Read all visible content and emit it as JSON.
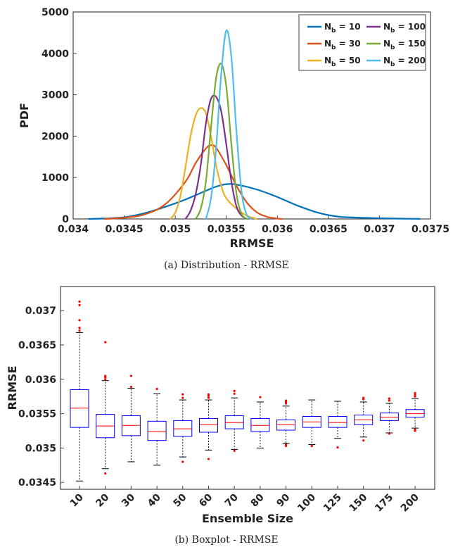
{
  "figure_a": {
    "caption": "(a) Distribution - RRMSE"
  },
  "figure_b": {
    "caption": "(b) Boxplot - RRMSE"
  },
  "chart_data": [
    {
      "type": "line",
      "xlabel": "RRMSE",
      "ylabel": "PDF",
      "xlim": [
        0.034,
        0.0375
      ],
      "ylim": [
        0,
        5000
      ],
      "xticks": [
        "0.034",
        "0.0345",
        "0.035",
        "0.0355",
        "0.036",
        "0.0365",
        "0.037",
        "0.0375"
      ],
      "yticks": [
        "0",
        "1000",
        "2000",
        "3000",
        "4000",
        "5000"
      ],
      "legend_position": "top-right",
      "series": [
        {
          "name_main": "N",
          "name_sub": "b",
          "name_rest": " = 10",
          "color": "#0072BD",
          "x": [
            0.03415,
            0.0343,
            0.0345,
            0.0347,
            0.0349,
            0.0351,
            0.0353,
            0.0354,
            0.0355,
            0.0356,
            0.0358,
            0.036,
            0.0362,
            0.0364,
            0.0366,
            0.0368,
            0.037,
            0.0372,
            0.0374
          ],
          "y": [
            0,
            10,
            40,
            140,
            290,
            470,
            680,
            780,
            840,
            830,
            710,
            530,
            320,
            150,
            55,
            30,
            18,
            8,
            2
          ]
        },
        {
          "name_main": "N",
          "name_sub": "b",
          "name_rest": " = 30",
          "color": "#D95319",
          "x": [
            0.0343,
            0.0345,
            0.0347,
            0.0349,
            0.0351,
            0.0352,
            0.0353,
            0.03535,
            0.0354,
            0.0355,
            0.0356,
            0.0357,
            0.0358,
            0.0359,
            0.036,
            0.03605
          ],
          "y": [
            0,
            30,
            110,
            350,
            900,
            1350,
            1700,
            1780,
            1720,
            1300,
            800,
            400,
            160,
            50,
            10,
            0
          ]
        },
        {
          "name_main": "N",
          "name_sub": "b",
          "name_rest": " = 50",
          "color": "#EDB120",
          "x": [
            0.03495,
            0.035,
            0.03505,
            0.0351,
            0.03515,
            0.0352,
            0.03525,
            0.0353,
            0.03535,
            0.0354,
            0.03545,
            0.0355,
            0.0356,
            0.0357,
            0.0358
          ],
          "y": [
            0,
            150,
            550,
            1250,
            2000,
            2500,
            2680,
            2550,
            2000,
            1300,
            800,
            500,
            250,
            80,
            0
          ]
        },
        {
          "name_main": "N",
          "name_sub": "b",
          "name_rest": " = 100",
          "color": "#7E2F8E",
          "x": [
            0.0351,
            0.03515,
            0.0352,
            0.03525,
            0.0353,
            0.03535,
            0.0354,
            0.03545,
            0.0355,
            0.03555,
            0.0356,
            0.03565,
            0.0357
          ],
          "y": [
            0,
            200,
            600,
            1300,
            2300,
            2900,
            2950,
            2600,
            1800,
            900,
            300,
            80,
            0
          ]
        },
        {
          "name_main": "N",
          "name_sub": "b",
          "name_rest": " = 150",
          "color": "#77AC30",
          "x": [
            0.0352,
            0.03525,
            0.0353,
            0.03535,
            0.0354,
            0.03545,
            0.0355,
            0.03555,
            0.0356,
            0.03565,
            0.0357
          ],
          "y": [
            0,
            250,
            900,
            2200,
            3400,
            3750,
            3200,
            1800,
            600,
            120,
            0
          ]
        },
        {
          "name_main": "N",
          "name_sub": "b",
          "name_rest": " = 200",
          "color": "#4DBEEE",
          "x": [
            0.0353,
            0.03535,
            0.0354,
            0.03545,
            0.0355,
            0.03555,
            0.0356,
            0.03565,
            0.0357,
            0.03575
          ],
          "y": [
            0,
            500,
            1700,
            3500,
            4550,
            3900,
            2100,
            650,
            100,
            0
          ]
        }
      ]
    },
    {
      "type": "box",
      "xlabel": "Ensemble Size",
      "ylabel": "RRMSE",
      "ylim": [
        0.0344,
        0.03735
      ],
      "yticks": [
        "0.0345",
        "0.035",
        "0.0355",
        "0.036",
        "0.0365",
        "0.037"
      ],
      "box_color": "#0000FF",
      "median_color": "#FF0000",
      "outlier_color": "#FF0000",
      "categories": [
        "10",
        "20",
        "30",
        "40",
        "50",
        "60",
        "70",
        "80",
        "90",
        "100",
        "125",
        "150",
        "175",
        "200"
      ],
      "boxes": [
        {
          "min": 0.03452,
          "q1": 0.0353,
          "median": 0.03558,
          "q3": 0.03585,
          "max": 0.03668,
          "outliers": [
            0.03671,
            0.03675,
            0.03686,
            0.03708,
            0.03713
          ]
        },
        {
          "min": 0.0347,
          "q1": 0.03515,
          "median": 0.03532,
          "q3": 0.03549,
          "max": 0.03598,
          "outliers": [
            0.03463,
            0.036,
            0.03603,
            0.03605,
            0.03654
          ]
        },
        {
          "min": 0.0348,
          "q1": 0.03518,
          "median": 0.03533,
          "q3": 0.03547,
          "max": 0.03587,
          "outliers": [
            0.03589,
            0.03605
          ]
        },
        {
          "min": 0.03475,
          "q1": 0.03511,
          "median": 0.03524,
          "q3": 0.03539,
          "max": 0.03579,
          "outliers": [
            0.03586
          ]
        },
        {
          "min": 0.03487,
          "q1": 0.03517,
          "median": 0.03528,
          "q3": 0.0354,
          "max": 0.0357,
          "outliers": [
            0.0348,
            0.03573,
            0.03578
          ]
        },
        {
          "min": 0.03497,
          "q1": 0.03523,
          "median": 0.03534,
          "q3": 0.03543,
          "max": 0.0357,
          "outliers": [
            0.03484,
            0.03573,
            0.03576,
            0.03578
          ]
        },
        {
          "min": 0.03498,
          "q1": 0.03528,
          "median": 0.03537,
          "q3": 0.03547,
          "max": 0.03573,
          "outliers": [
            0.03496,
            0.03579,
            0.03583
          ]
        },
        {
          "min": 0.035,
          "q1": 0.03524,
          "median": 0.03533,
          "q3": 0.03543,
          "max": 0.03567,
          "outliers": [
            0.03574
          ]
        },
        {
          "min": 0.03507,
          "q1": 0.03526,
          "median": 0.03534,
          "q3": 0.03541,
          "max": 0.03561,
          "outliers": [
            0.03503,
            0.03505,
            0.03565,
            0.03567,
            0.03569
          ]
        },
        {
          "min": 0.03505,
          "q1": 0.0353,
          "median": 0.03538,
          "q3": 0.03546,
          "max": 0.0357,
          "outliers": [
            0.03503
          ]
        },
        {
          "min": 0.03514,
          "q1": 0.0353,
          "median": 0.03537,
          "q3": 0.03546,
          "max": 0.03568,
          "outliers": [
            0.03501
          ]
        },
        {
          "min": 0.03516,
          "q1": 0.03534,
          "median": 0.03541,
          "q3": 0.03548,
          "max": 0.03567,
          "outliers": [
            0.03511,
            0.03571,
            0.03573
          ]
        },
        {
          "min": 0.03522,
          "q1": 0.0354,
          "median": 0.03545,
          "q3": 0.03551,
          "max": 0.03565,
          "outliers": [
            0.03521,
            0.03569,
            0.03572
          ]
        },
        {
          "min": 0.03529,
          "q1": 0.03545,
          "median": 0.0355,
          "q3": 0.03556,
          "max": 0.03572,
          "outliers": [
            0.03525,
            0.03527,
            0.03575,
            0.03577,
            0.0358
          ]
        }
      ]
    }
  ]
}
